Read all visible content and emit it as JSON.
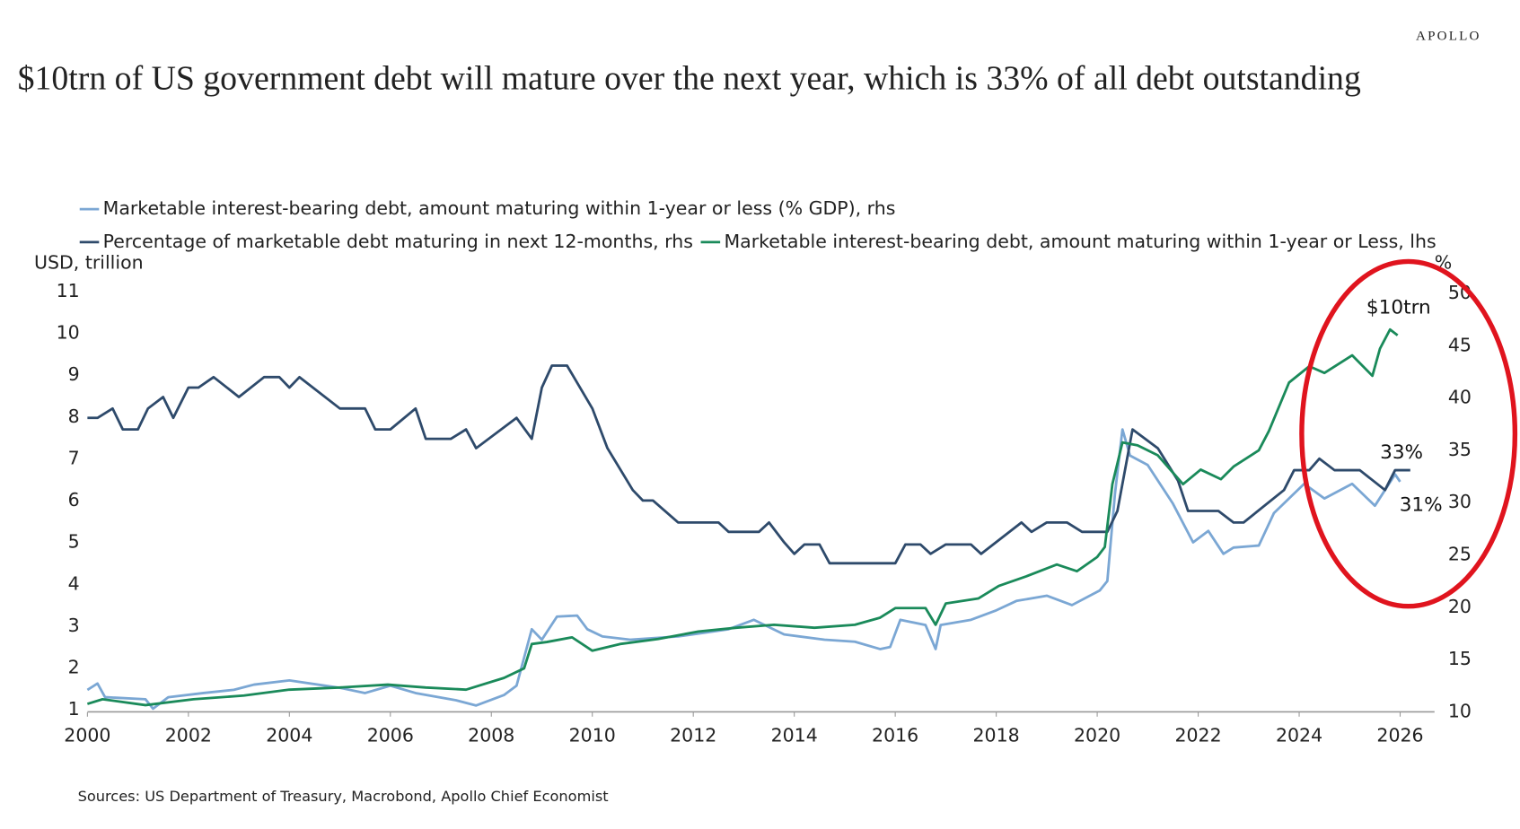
{
  "brand": "APOLLO",
  "chart_data": {
    "type": "line",
    "title": "$10trn of US government debt will mature over the next year, which is 33% of all debt outstanding",
    "y_label": "USD, trillion",
    "y2_label": "%",
    "source": "Sources: US Department of Treasury, Macrobond, Apollo Chief Economist",
    "annotations": [
      "$10trn",
      "33%",
      "31%"
    ],
    "xlim": [
      2000,
      2026.7
    ],
    "xticks": [
      2000,
      2002,
      2004,
      2006,
      2008,
      2010,
      2012,
      2014,
      2016,
      2018,
      2020,
      2022,
      2024,
      2026
    ],
    "ylim": [
      1,
      11
    ],
    "yticks": [
      1,
      2,
      3,
      4,
      5,
      6,
      7,
      8,
      9,
      10,
      11
    ],
    "y2lim": [
      10,
      50
    ],
    "y2ticks": [
      10,
      15,
      20,
      25,
      30,
      35,
      40,
      45,
      50
    ],
    "grid": false,
    "series": [
      {
        "name": "Marketable interest-bearing debt, amount maturing within 1-year or less (% GDP), rhs",
        "color": "#7ba7d4",
        "axis": "y2",
        "x": [
          2000.0,
          2000.2,
          2000.35,
          2001.15,
          2001.3,
          2001.6,
          2002.3,
          2002.9,
          2003.3,
          2004.0,
          2005.0,
          2005.5,
          2006.0,
          2006.5,
          2007.3,
          2007.7,
          2008.25,
          2008.5,
          2008.8,
          2009.0,
          2009.3,
          2009.7,
          2009.9,
          2010.2,
          2010.75,
          2011.7,
          2012.7,
          2013.2,
          2013.8,
          2014.6,
          2015.2,
          2015.7,
          2015.9,
          2016.1,
          2016.6,
          2016.8,
          2016.9,
          2017.5,
          2018.0,
          2018.4,
          2019.0,
          2019.5,
          2020.05,
          2020.2,
          2020.35,
          2020.5,
          2020.65,
          2021.0,
          2021.5,
          2021.9,
          2022.2,
          2022.5,
          2022.7,
          2023.2,
          2023.5,
          2024.1,
          2024.5,
          2025.05,
          2025.5,
          2025.9,
          2026.0
        ],
        "values": [
          12.1,
          12.7,
          11.4,
          11.2,
          10.3,
          11.4,
          11.8,
          12.1,
          12.6,
          13.0,
          12.3,
          11.8,
          12.5,
          11.8,
          11.1,
          10.6,
          11.6,
          12.5,
          17.9,
          16.9,
          19.1,
          19.2,
          17.9,
          17.2,
          16.9,
          17.2,
          17.9,
          18.8,
          17.4,
          16.9,
          16.7,
          16.0,
          16.2,
          18.8,
          18.3,
          16.0,
          18.3,
          18.8,
          19.7,
          20.6,
          21.1,
          20.2,
          21.6,
          22.5,
          30.8,
          37.0,
          34.5,
          33.6,
          29.9,
          26.2,
          27.3,
          25.1,
          25.7,
          25.9,
          29.0,
          31.8,
          30.4,
          31.8,
          29.7,
          32.7,
          32.0
        ]
      },
      {
        "name": "Percentage of marketable debt maturing in next 12-months, rhs",
        "color": "#2e4a6b",
        "axis": "y2",
        "x": [
          2000.0,
          2000.2,
          2000.5,
          2000.7,
          2001.0,
          2001.2,
          2001.5,
          2001.7,
          2002.0,
          2002.2,
          2002.5,
          2003.0,
          2003.5,
          2003.8,
          2004.0,
          2004.2,
          2005.0,
          2005.5,
          2005.7,
          2006.0,
          2006.5,
          2006.7,
          2007.2,
          2007.5,
          2007.7,
          2008.5,
          2008.8,
          2009.0,
          2009.2,
          2009.5,
          2010.0,
          2010.3,
          2010.8,
          2011.0,
          2011.2,
          2011.7,
          2012.5,
          2012.7,
          2013.3,
          2013.5,
          2013.8,
          2014.0,
          2014.2,
          2014.5,
          2014.7,
          2016.0,
          2016.2,
          2016.5,
          2016.7,
          2017.0,
          2017.5,
          2017.7,
          2018.5,
          2018.7,
          2019.0,
          2019.4,
          2019.7,
          2020.2,
          2020.4,
          2020.7,
          2021.2,
          2021.6,
          2021.8,
          2022.4,
          2022.7,
          2022.9,
          2023.7,
          2023.9,
          2024.2,
          2024.4,
          2024.7,
          2025.2,
          2025.7,
          2025.9,
          2026.2
        ],
        "values": [
          38.1,
          38.1,
          39.0,
          37.0,
          37.0,
          39.0,
          40.1,
          38.1,
          41.0,
          41.0,
          42.0,
          40.1,
          42.0,
          42.0,
          41.0,
          42.0,
          39.0,
          39.0,
          37.0,
          37.0,
          39.0,
          36.1,
          36.1,
          37.0,
          35.2,
          38.1,
          36.1,
          41.0,
          43.1,
          43.1,
          39.0,
          35.2,
          31.2,
          30.2,
          30.2,
          28.1,
          28.1,
          27.2,
          27.2,
          28.1,
          26.2,
          25.1,
          26.0,
          26.0,
          24.2,
          24.2,
          26.0,
          26.0,
          25.1,
          26.0,
          26.0,
          25.1,
          28.1,
          27.2,
          28.1,
          28.1,
          27.2,
          27.2,
          29.2,
          37.0,
          35.2,
          32.1,
          29.2,
          29.2,
          28.1,
          28.1,
          31.2,
          33.1,
          33.1,
          34.2,
          33.1,
          33.1,
          31.2,
          33.1,
          33.1
        ]
      },
      {
        "name": "Marketable interest-bearing debt, amount maturing within 1-year or Less, lhs",
        "color": "#1a8a5a",
        "axis": "y",
        "x": [
          2000.0,
          2000.3,
          2001.15,
          2002.1,
          2003.1,
          2004.0,
          2005.0,
          2005.95,
          2006.7,
          2007.5,
          2008.25,
          2008.65,
          2008.8,
          2009.1,
          2009.6,
          2010.0,
          2010.55,
          2011.3,
          2012.1,
          2012.85,
          2013.6,
          2014.4,
          2015.2,
          2015.7,
          2016.0,
          2016.6,
          2016.8,
          2017.0,
          2017.65,
          2018.05,
          2018.6,
          2019.2,
          2019.6,
          2020.0,
          2020.15,
          2020.3,
          2020.5,
          2020.8,
          2021.2,
          2021.7,
          2022.05,
          2022.45,
          2022.7,
          2023.2,
          2023.4,
          2023.8,
          2024.2,
          2024.5,
          2025.05,
          2025.45,
          2025.6,
          2025.8,
          2025.95
        ],
        "values": [
          1.19,
          1.3,
          1.16,
          1.3,
          1.39,
          1.53,
          1.58,
          1.65,
          1.58,
          1.53,
          1.81,
          2.04,
          2.62,
          2.67,
          2.78,
          2.46,
          2.62,
          2.74,
          2.92,
          3.01,
          3.08,
          3.01,
          3.08,
          3.25,
          3.48,
          3.48,
          3.08,
          3.59,
          3.71,
          4.01,
          4.24,
          4.52,
          4.36,
          4.7,
          4.94,
          6.44,
          7.44,
          7.37,
          7.13,
          6.44,
          6.79,
          6.56,
          6.86,
          7.25,
          7.71,
          8.87,
          9.26,
          9.1,
          9.52,
          9.03,
          9.68,
          10.14,
          10.0
        ]
      }
    ]
  }
}
